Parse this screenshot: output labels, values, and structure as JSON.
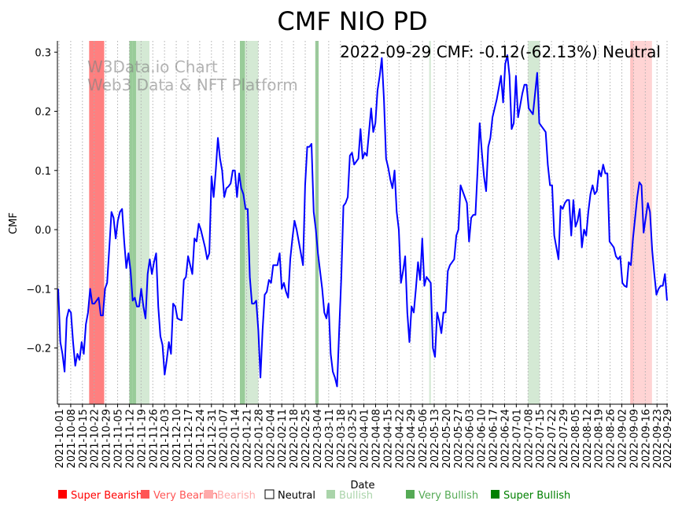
{
  "chart_data": {
    "type": "line",
    "title": "CMF NIO PD",
    "xlabel": "Date",
    "ylabel": "CMF",
    "annotation": "2022-09-29 CMF: -0.12(-62.13%) Neutral",
    "watermark": [
      "W3Data.io Chart",
      "Web3 Data & NFT Platform"
    ],
    "x_start": "2021-10-01",
    "x_end": "2022-09-29",
    "ylim": [
      -0.295,
      0.319
    ],
    "yticks": [
      -0.2,
      -0.1,
      0.0,
      0.1,
      0.2,
      0.3
    ],
    "ytick_labels": [
      "−0.2",
      "−0.1",
      "0.0",
      "0.1",
      "0.2",
      "0.3"
    ],
    "xtick_labels": [
      "2021-10-01",
      "2021-10-08",
      "2021-10-15",
      "2021-10-22",
      "2021-10-29",
      "2021-11-05",
      "2021-11-12",
      "2021-11-19",
      "2021-11-26",
      "2021-12-03",
      "2021-12-10",
      "2021-12-17",
      "2021-12-24",
      "2021-12-31",
      "2022-01-07",
      "2022-01-14",
      "2022-01-21",
      "2022-01-28",
      "2022-02-04",
      "2022-02-11",
      "2022-02-18",
      "2022-02-25",
      "2022-03-04",
      "2022-03-11",
      "2022-03-18",
      "2022-03-25",
      "2022-04-01",
      "2022-04-08",
      "2022-04-15",
      "2022-04-22",
      "2022-04-29",
      "2022-05-06",
      "2022-05-13",
      "2022-05-20",
      "2022-05-27",
      "2022-06-03",
      "2022-06-10",
      "2022-06-17",
      "2022-06-24",
      "2022-07-01",
      "2022-07-08",
      "2022-07-15",
      "2022-07-22",
      "2022-07-29",
      "2022-08-05",
      "2022-08-12",
      "2022-08-19",
      "2022-08-26",
      "2022-09-02",
      "2022-09-09",
      "2022-09-16",
      "2022-09-23",
      "2022-09-29"
    ],
    "grid": "vertical dotted",
    "series": [
      {
        "name": "CMF",
        "color": "#0000ff",
        "values": [
          -0.1,
          -0.19,
          -0.21,
          -0.24,
          -0.15,
          -0.135,
          -0.14,
          -0.19,
          -0.23,
          -0.21,
          -0.22,
          -0.19,
          -0.21,
          -0.16,
          -0.14,
          -0.1,
          -0.125,
          -0.125,
          -0.12,
          -0.115,
          -0.145,
          -0.145,
          -0.1,
          -0.09,
          -0.03,
          0.03,
          0.02,
          -0.015,
          0.015,
          0.03,
          0.035,
          -0.02,
          -0.065,
          -0.04,
          -0.07,
          -0.12,
          -0.115,
          -0.13,
          -0.13,
          -0.1,
          -0.13,
          -0.15,
          -0.075,
          -0.05,
          -0.075,
          -0.055,
          -0.04,
          -0.13,
          -0.18,
          -0.195,
          -0.245,
          -0.22,
          -0.19,
          -0.21,
          -0.125,
          -0.13,
          -0.15,
          -0.152,
          -0.153,
          -0.085,
          -0.08,
          -0.045,
          -0.06,
          -0.075,
          -0.015,
          -0.02,
          0.01,
          0.0,
          -0.015,
          -0.03,
          -0.05,
          -0.04,
          0.09,
          0.055,
          0.1,
          0.155,
          0.12,
          0.1,
          0.055,
          0.07,
          0.073,
          0.078,
          0.1,
          0.1,
          0.055,
          0.095,
          0.07,
          0.06,
          0.035,
          0.035,
          -0.08,
          -0.125,
          -0.125,
          -0.12,
          -0.17,
          -0.25,
          -0.17,
          -0.11,
          -0.105,
          -0.085,
          -0.09,
          -0.06,
          -0.06,
          -0.06,
          -0.04,
          -0.1,
          -0.09,
          -0.105,
          -0.115,
          -0.05,
          -0.015,
          0.015,
          0.0,
          -0.02,
          -0.04,
          -0.06,
          0.075,
          0.14,
          0.14,
          0.145,
          0.03,
          0.0,
          -0.04,
          -0.07,
          -0.1,
          -0.14,
          -0.15,
          -0.125,
          -0.21,
          -0.24,
          -0.25,
          -0.265,
          -0.17,
          -0.08,
          0.04,
          0.045,
          0.055,
          0.125,
          0.13,
          0.11,
          0.115,
          0.12,
          0.17,
          0.12,
          0.13,
          0.125,
          0.165,
          0.205,
          0.165,
          0.18,
          0.235,
          0.26,
          0.29,
          0.22,
          0.12,
          0.105,
          0.085,
          0.07,
          0.1,
          0.03,
          0.0,
          -0.09,
          -0.07,
          -0.045,
          -0.14,
          -0.19,
          -0.13,
          -0.14,
          -0.1,
          -0.055,
          -0.085,
          -0.015,
          -0.095,
          -0.08,
          -0.085,
          -0.09,
          -0.2,
          -0.215,
          -0.14,
          -0.155,
          -0.175,
          -0.14,
          -0.14,
          -0.07,
          -0.06,
          -0.055,
          -0.05,
          -0.01,
          0.0,
          0.075,
          0.065,
          0.055,
          0.045,
          -0.02,
          0.02,
          0.025,
          0.025,
          0.1,
          0.18,
          0.13,
          0.09,
          0.065,
          0.14,
          0.155,
          0.19,
          0.205,
          0.22,
          0.24,
          0.26,
          0.215,
          0.28,
          0.295,
          0.26,
          0.17,
          0.18,
          0.26,
          0.19,
          0.21,
          0.23,
          0.245,
          0.245,
          0.205,
          0.2,
          0.195,
          0.23,
          0.265,
          0.18,
          0.175,
          0.17,
          0.165,
          0.11,
          0.075,
          0.075,
          -0.01,
          -0.03,
          -0.05,
          0.04,
          0.035,
          0.045,
          0.05,
          0.05,
          -0.01,
          0.05,
          0.005,
          0.015,
          0.035,
          -0.03,
          0.0,
          -0.01,
          0.03,
          0.06,
          0.075,
          0.06,
          0.065,
          0.1,
          0.09,
          0.11,
          0.095,
          0.095,
          -0.02,
          -0.025,
          -0.03,
          -0.045,
          -0.05,
          -0.045,
          -0.09,
          -0.095,
          -0.097,
          -0.055,
          -0.06,
          -0.015,
          0.02,
          0.055,
          0.08,
          0.075,
          -0.005,
          0.02,
          0.045,
          0.03,
          -0.035,
          -0.075,
          -0.11,
          -0.1,
          -0.095,
          -0.095,
          -0.075,
          -0.12
        ]
      }
    ],
    "bands": [
      {
        "start": "2021-10-19",
        "end": "2021-10-28",
        "level": "super_bearish"
      },
      {
        "start": "2021-11-12",
        "end": "2021-11-14",
        "level": "very_bullish"
      },
      {
        "start": "2021-11-14",
        "end": "2021-11-16",
        "level": "very_bullish"
      },
      {
        "start": "2021-11-16",
        "end": "2021-11-24",
        "level": "bullish"
      },
      {
        "start": "2022-01-17",
        "end": "2022-01-20",
        "level": "very_bullish"
      },
      {
        "start": "2022-01-20",
        "end": "2022-01-28",
        "level": "bullish"
      },
      {
        "start": "2022-03-03",
        "end": "2022-03-05",
        "level": "very_bullish"
      },
      {
        "start": "2022-05-10",
        "end": "2022-05-11",
        "level": "bullish"
      },
      {
        "start": "2022-07-08",
        "end": "2022-07-15",
        "level": "bullish"
      },
      {
        "start": "2022-09-07",
        "end": "2022-09-09",
        "level": "very_bearish"
      },
      {
        "start": "2022-09-09",
        "end": "2022-09-20",
        "level": "bearish"
      }
    ],
    "legend": {
      "placement": "bottom",
      "items": [
        {
          "key": "super_bearish",
          "label": "Super Bearish",
          "color": "#ff0000",
          "text_color": "#ff0000"
        },
        {
          "key": "very_bearish",
          "label": "Very Bearish",
          "color": "#ff5555",
          "text_color": "#ff5555"
        },
        {
          "key": "bearish",
          "label": "Bearish",
          "color": "#ffaaaa",
          "text_color": "#ffaaaa"
        },
        {
          "key": "neutral",
          "label": "Neutral",
          "color": "#ffffff",
          "text_color": "#000000"
        },
        {
          "key": "bullish",
          "label": "Bullish",
          "color": "#aad4aa",
          "text_color": "#aad4aa"
        },
        {
          "key": "very_bullish",
          "label": "Very Bullish",
          "color": "#55aa55",
          "text_color": "#55aa55"
        },
        {
          "key": "super_bullish",
          "label": "Super Bullish",
          "color": "#008000",
          "text_color": "#008000"
        }
      ]
    },
    "band_alpha": {
      "super_bearish": 0.5,
      "very_bearish": 0.35,
      "bearish": 0.5,
      "bullish": 0.5,
      "very_bullish": 0.6,
      "super_bullish": 0.5
    }
  }
}
